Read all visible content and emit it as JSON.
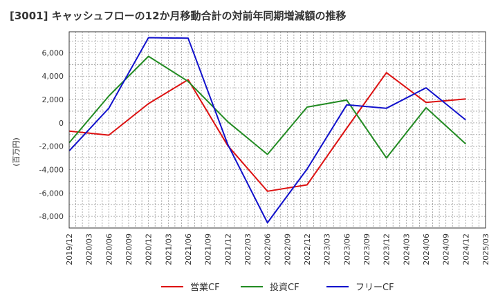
{
  "chart_data": {
    "type": "line",
    "title": "[3001]  キャッシュフローの12か月移動合計の対前年同期増減額の推移",
    "ylabel": "(百万円)",
    "xlabel": "",
    "x": [
      "2019/12",
      "2020/03",
      "2020/06",
      "2020/09",
      "2020/12",
      "2021/03",
      "2021/06",
      "2021/09",
      "2021/12",
      "2022/03",
      "2022/06",
      "2022/09",
      "2022/12",
      "2023/03",
      "2023/06",
      "2023/09",
      "2023/12",
      "2024/03",
      "2024/06",
      "2024/09",
      "2024/12",
      "2025/03"
    ],
    "ylim": [
      -9000,
      7800
    ],
    "yticks": [
      -8000,
      -6000,
      -4000,
      -2000,
      0,
      2000,
      4000,
      6000
    ],
    "ytick_labels": [
      "-8,000",
      "-6,000",
      "-4,000",
      "-2,000",
      "0",
      "2,000",
      "4,000",
      "6,000"
    ],
    "grid": true,
    "legend_position": "bottom",
    "series": [
      {
        "name": "営業CF",
        "color": "#dd1111",
        "points": [
          [
            "2019/12",
            -700
          ],
          [
            "2020/06",
            -1050
          ],
          [
            "2020/12",
            1650
          ],
          [
            "2021/06",
            3700
          ],
          [
            "2021/12",
            -1950
          ],
          [
            "2022/06",
            -5850
          ],
          [
            "2022/12",
            -5300
          ],
          [
            "2023/06",
            -450
          ],
          [
            "2023/12",
            4300
          ],
          [
            "2024/06",
            1750
          ],
          [
            "2024/12",
            2050
          ]
        ]
      },
      {
        "name": "投資CF",
        "color": "#228b22",
        "points": [
          [
            "2019/12",
            -1700
          ],
          [
            "2020/06",
            2300
          ],
          [
            "2020/12",
            5700
          ],
          [
            "2021/06",
            3550
          ],
          [
            "2021/12",
            100
          ],
          [
            "2022/06",
            -2700
          ],
          [
            "2022/12",
            1350
          ],
          [
            "2023/06",
            1950
          ],
          [
            "2023/12",
            -3000
          ],
          [
            "2024/06",
            1300
          ],
          [
            "2024/12",
            -1800
          ]
        ]
      },
      {
        "name": "フリーCF",
        "color": "#1111cc",
        "points": [
          [
            "2019/12",
            -2400
          ],
          [
            "2020/06",
            1250
          ],
          [
            "2020/12",
            7300
          ],
          [
            "2021/06",
            7250
          ],
          [
            "2021/12",
            -1850
          ],
          [
            "2022/06",
            -8550
          ],
          [
            "2022/12",
            -3950
          ],
          [
            "2023/06",
            1550
          ],
          [
            "2023/12",
            1250
          ],
          [
            "2024/06",
            3000
          ],
          [
            "2024/12",
            250
          ]
        ]
      }
    ]
  }
}
